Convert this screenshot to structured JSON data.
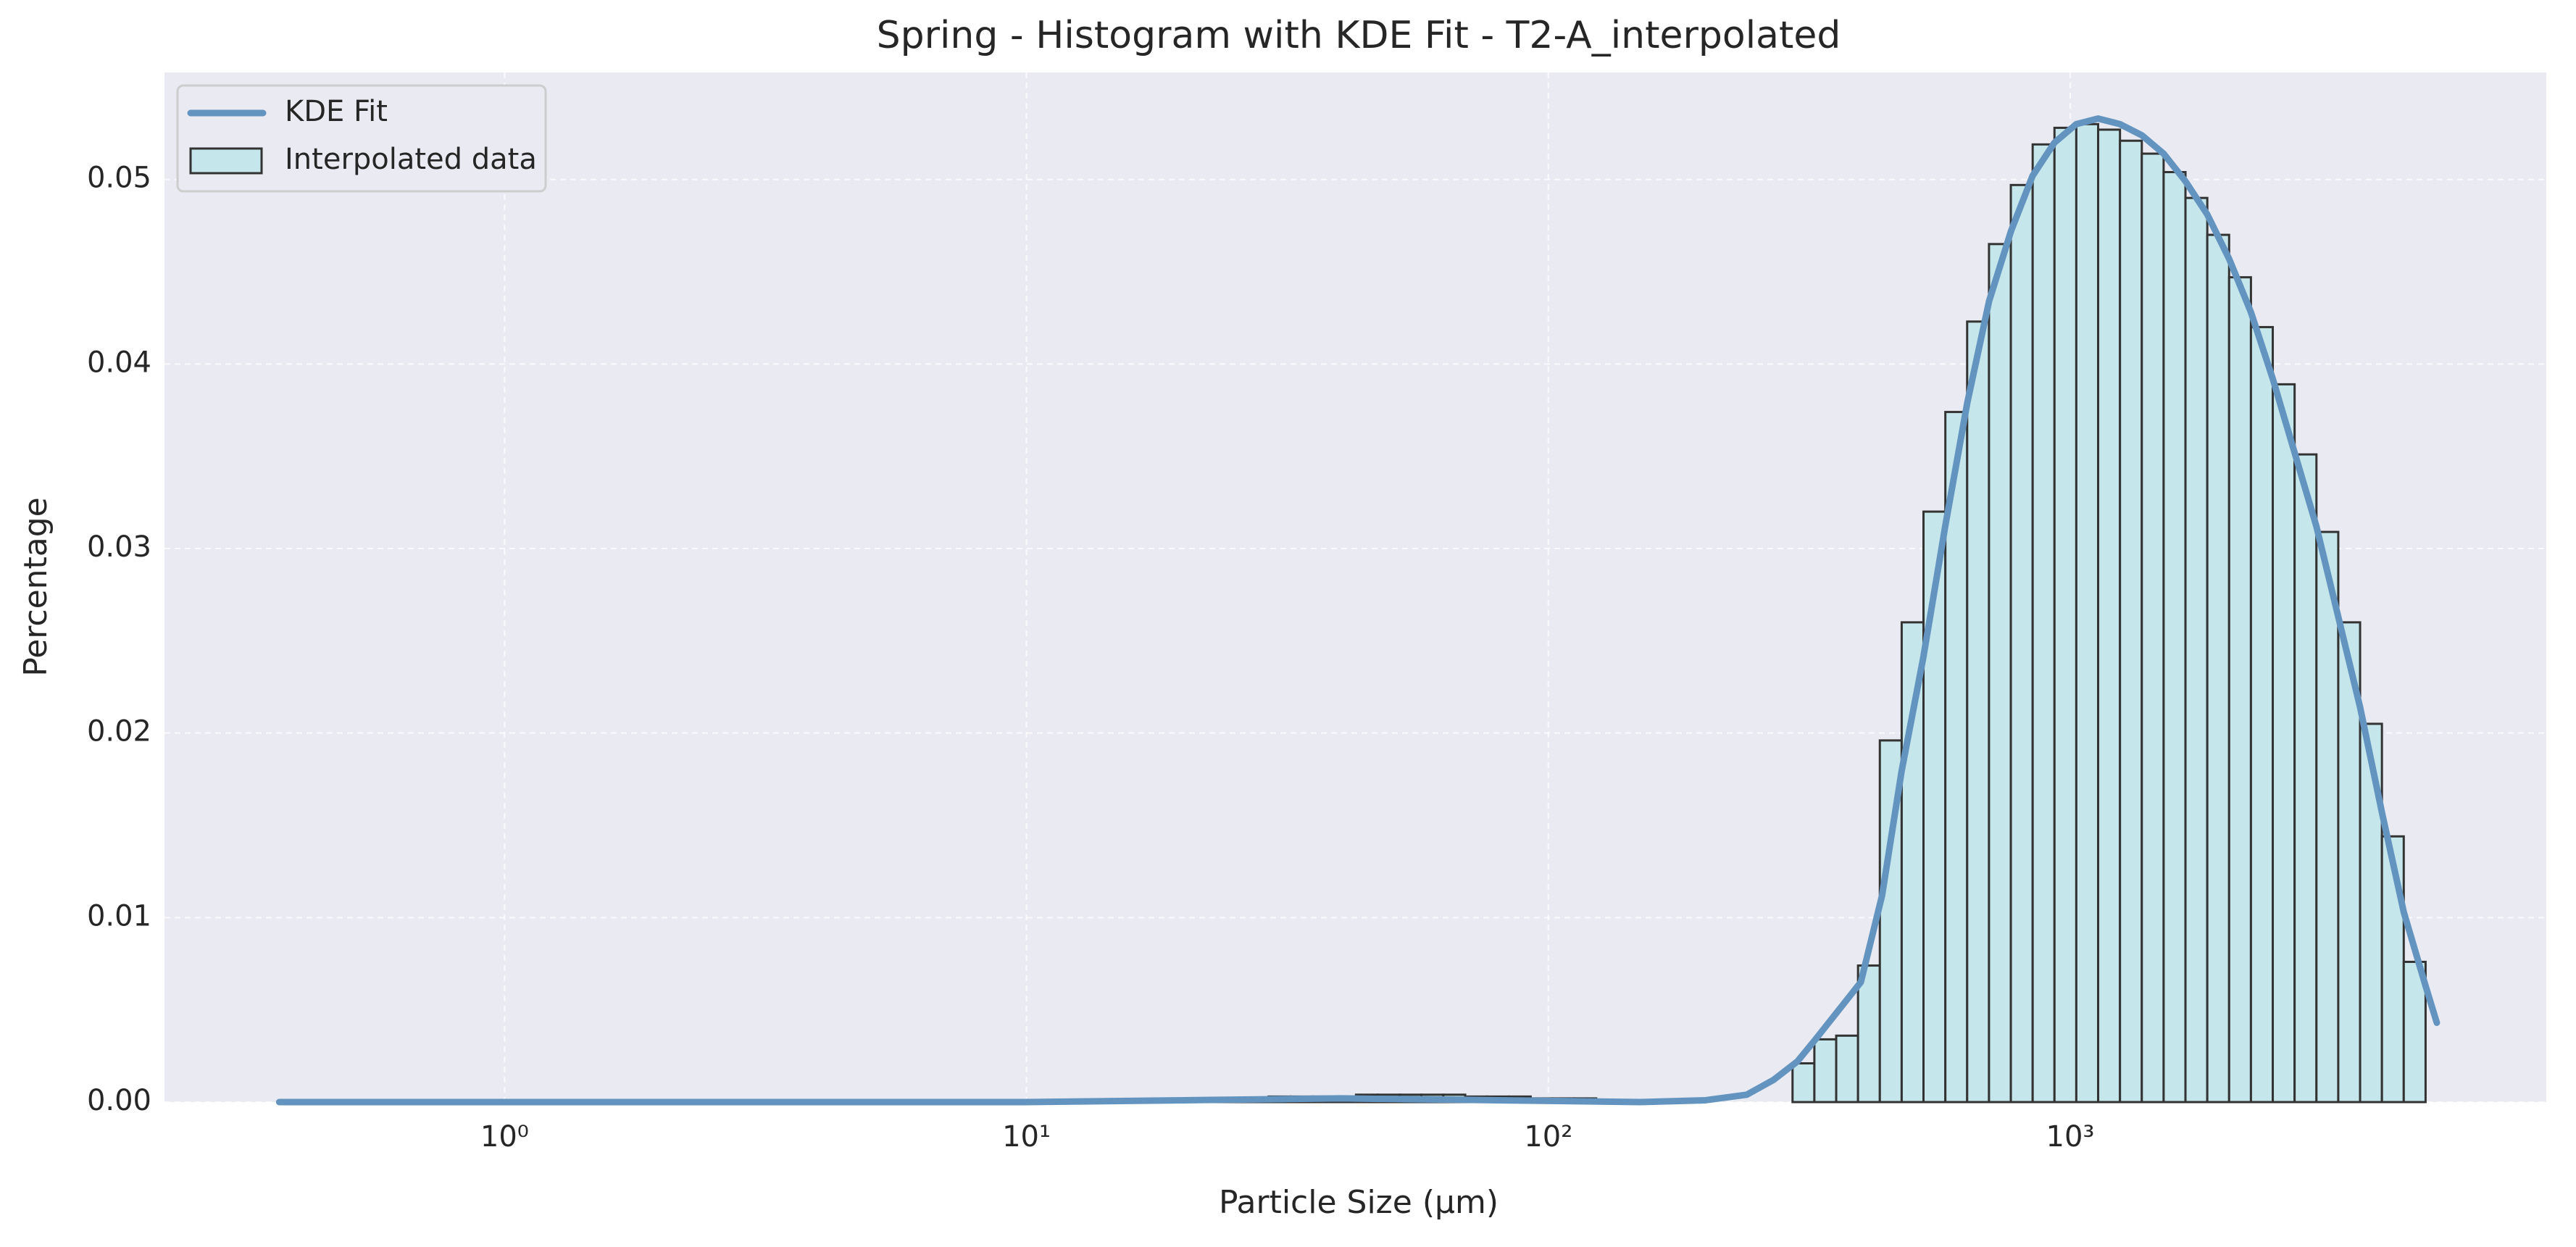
{
  "chart_data": {
    "type": "histogram",
    "title": "Spring - Histogram with KDE Fit - T2-A_interpolated",
    "xlabel": "Particle Size (μm)",
    "ylabel": "Percentage",
    "xscale": "log",
    "xlim": [
      0.223,
      8170
    ],
    "ylim": [
      0,
      0.0558
    ],
    "xticks": [
      {
        "value": 1,
        "label": "10⁰"
      },
      {
        "value": 10,
        "label": "10¹"
      },
      {
        "value": 100,
        "label": "10²"
      },
      {
        "value": 1000,
        "label": "10³"
      }
    ],
    "yticks": [
      {
        "value": 0,
        "label": "0.00"
      },
      0.01,
      0.02,
      0.03,
      0.04,
      0.05
    ],
    "grid": true,
    "legend_loc": "upper left",
    "background": "#eaeaf2",
    "series": [
      {
        "name": "KDE Fit",
        "type": "line",
        "color": "#6394c0",
        "x": [
          0.37,
          1,
          5,
          10,
          20,
          40,
          80,
          150,
          200,
          240,
          270,
          300,
          325,
          397,
          436,
          475,
          523,
          576,
          635,
          699,
          770,
          847,
          933,
          1027,
          1131,
          1245,
          1371,
          1510,
          1663,
          1831,
          2016,
          2220,
          2444,
          2691,
          2963,
          3263,
          3593,
          3956,
          4356,
          4796,
          5040
        ],
        "values": [
          0,
          0,
          0,
          0,
          0.0001,
          0.0002,
          0.0001,
          0,
          0.0001,
          0.0004,
          0.0012,
          0.0022,
          0.0034,
          0.0065,
          0.0112,
          0.0179,
          0.0241,
          0.0312,
          0.0379,
          0.0434,
          0.0472,
          0.0502,
          0.052,
          0.053,
          0.0533,
          0.053,
          0.0524,
          0.0514,
          0.0499,
          0.0481,
          0.0457,
          0.0428,
          0.0392,
          0.0352,
          0.0312,
          0.0263,
          0.0214,
          0.0157,
          0.0103,
          0.0063,
          0.0043
        ]
      },
      {
        "name": "Interpolated data",
        "type": "histogram",
        "color": "#c5e6ea",
        "edgecolor": "#333333",
        "bins": [
          14.8,
          16.3,
          18.0,
          19.8,
          21.8,
          24.0,
          26.4,
          29.1,
          32.1,
          35.3,
          38.9,
          42.8,
          47.1,
          51.9,
          57.1,
          62.9,
          69.3,
          76.3,
          84.0,
          92.5,
          101.8,
          112.1,
          123.5,
          135.9,
          149.7,
          164.8,
          181.5,
          199.8,
          220.0,
          242.2,
          266.7,
          293.7,
          323.4,
          356.1,
          392.1,
          431.7,
          475.4,
          523.4,
          576.4,
          634.6,
          698.8,
          769.5,
          847.3,
          932.9,
          1027.2,
          1131.1,
          1245.5,
          1371.4,
          1510.0,
          1662.7,
          1830.8,
          2015.9,
          2219.7,
          2444.1,
          2691.2,
          2963.4,
          3263.0,
          3592.9,
          3956.1,
          4356.1,
          4796.5
        ],
        "values": [
          0.0001,
          0.0001,
          0.0001,
          0.0001,
          0.0002,
          0.0002,
          0.0002,
          0.0003,
          0.0003,
          0.0003,
          0.0003,
          0.0004,
          0.0004,
          0.0004,
          0.0004,
          0.0004,
          0.0003,
          0.0003,
          0.0003,
          0.0002,
          0.0002,
          0.0002,
          0.0001,
          0.0001,
          0.0001,
          0,
          0,
          0,
          0,
          0,
          0,
          0.0021,
          0.0034,
          0.0036,
          0.0074,
          0.0196,
          0.026,
          0.032,
          0.0374,
          0.0423,
          0.0465,
          0.0497,
          0.0519,
          0.0528,
          0.053,
          0.0527,
          0.0521,
          0.0514,
          0.0504,
          0.049,
          0.047,
          0.0447,
          0.042,
          0.0389,
          0.0351,
          0.0309,
          0.026,
          0.0205,
          0.0144,
          0.0076
        ]
      }
    ]
  }
}
